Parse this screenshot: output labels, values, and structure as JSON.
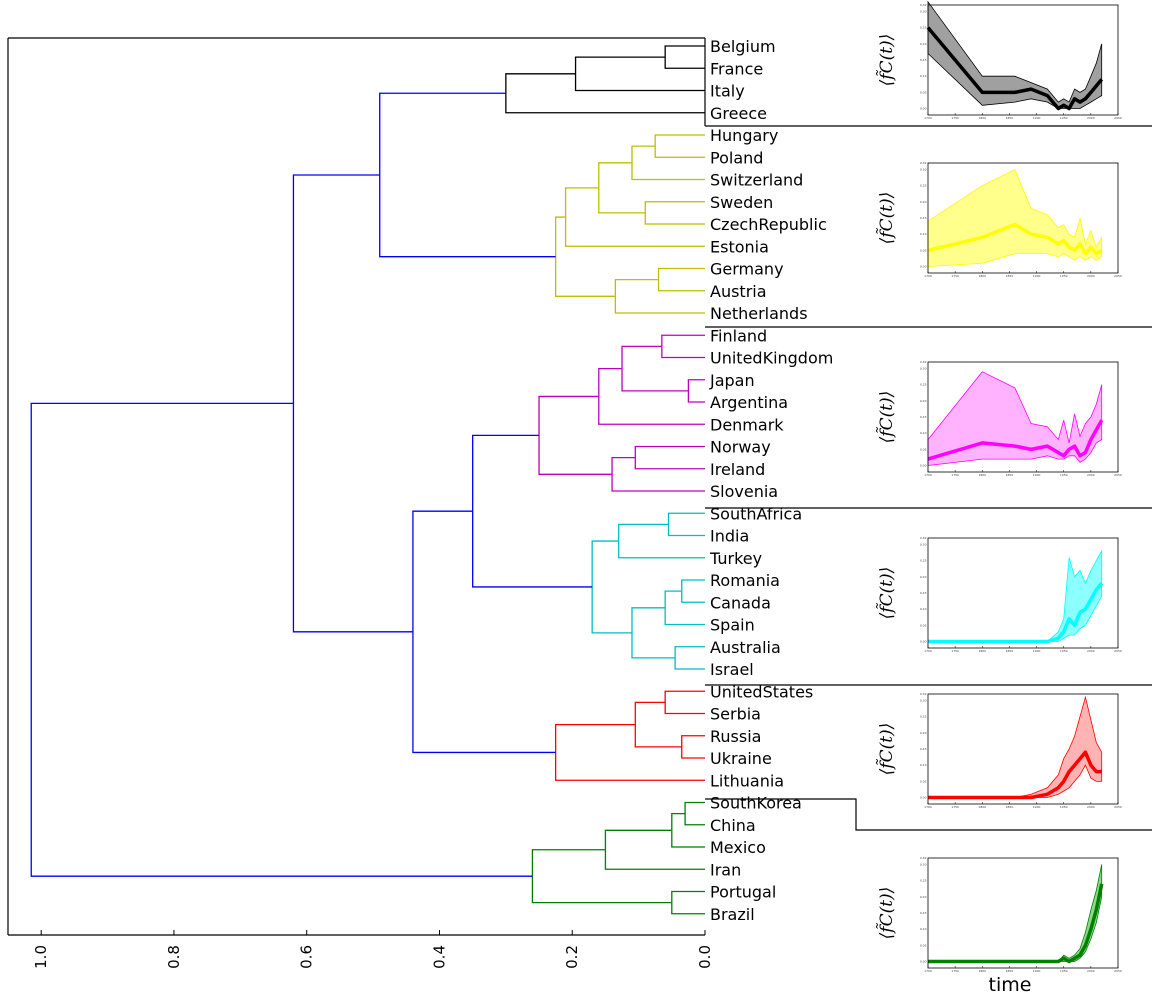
{
  "chart_data": [
    {
      "type": "dendrogram",
      "orientation": "left",
      "xlim": [
        1.05,
        0.0
      ],
      "xticks": [
        "1.0",
        "0.8",
        "0.6",
        "0.4",
        "0.2",
        "0.0"
      ],
      "xtick_values": [
        1.0,
        0.8,
        0.6,
        0.4,
        0.2,
        0.0
      ],
      "leaves": [
        "Belgium",
        "France",
        "Italy",
        "Greece",
        "Hungary",
        "Poland",
        "Switzerland",
        "Sweden",
        "CzechRepublic",
        "Estonia",
        "Germany",
        "Austria",
        "Netherlands",
        "Finland",
        "UnitedKingdom",
        "Japan",
        "Argentina",
        "Denmark",
        "Norway",
        "Ireland",
        "Slovenia",
        "SouthAfrica",
        "India",
        "Turkey",
        "Romania",
        "Canada",
        "Spain",
        "Australia",
        "Israel",
        "UnitedStates",
        "Serbia",
        "Russia",
        "Ukraine",
        "Lithuania",
        "SouthKorea",
        "China",
        "Mexico",
        "Iran",
        "Portugal",
        "Brazil"
      ],
      "links": [
        {
          "a": "Belgium",
          "b": "France",
          "height": 0.06,
          "color": "#000000"
        },
        {
          "a": "Belgium+France",
          "b": "Italy",
          "height": 0.195,
          "color": "#000000"
        },
        {
          "a": "Belgium+France+Italy",
          "b": "Greece",
          "height": 0.3,
          "color": "#000000"
        },
        {
          "a": "Hungary",
          "b": "Poland",
          "height": 0.075,
          "color": "#bfbf00"
        },
        {
          "a": "Hungary+Poland",
          "b": "Switzerland",
          "height": 0.11,
          "color": "#bfbf00"
        },
        {
          "a": "Sweden",
          "b": "CzechRepublic",
          "height": 0.09,
          "color": "#bfbf00"
        },
        {
          "a": "Hungary..Switzerland",
          "b": "Sweden+CzechRepublic",
          "height": 0.16,
          "color": "#bfbf00"
        },
        {
          "a": "Hungary..CzechRepublic",
          "b": "Estonia",
          "height": 0.21,
          "color": "#bfbf00"
        },
        {
          "a": "Germany",
          "b": "Austria",
          "height": 0.07,
          "color": "#bfbf00"
        },
        {
          "a": "Germany+Austria",
          "b": "Netherlands",
          "height": 0.135,
          "color": "#bfbf00"
        },
        {
          "a": "Hungary..Estonia",
          "b": "Germany..Netherlands",
          "height": 0.225,
          "color": "#bfbf00"
        },
        {
          "a": "Belgium..Greece",
          "b": "Hungary..Netherlands",
          "height": 0.49,
          "color": "#0000ff"
        },
        {
          "a": "Finland",
          "b": "UnitedKingdom",
          "height": 0.065,
          "color": "#bf00bf"
        },
        {
          "a": "Japan",
          "b": "Argentina",
          "height": 0.025,
          "color": "#bf00bf"
        },
        {
          "a": "Finland+UnitedKingdom",
          "b": "Japan+Argentina",
          "height": 0.125,
          "color": "#bf00bf"
        },
        {
          "a": "Finland..Argentina",
          "b": "Denmark",
          "height": 0.16,
          "color": "#bf00bf"
        },
        {
          "a": "Norway",
          "b": "Ireland",
          "height": 0.105,
          "color": "#bf00bf"
        },
        {
          "a": "Norway+Ireland",
          "b": "Slovenia",
          "height": 0.14,
          "color": "#bf00bf"
        },
        {
          "a": "Finland..Denmark",
          "b": "Norway..Slovenia",
          "height": 0.25,
          "color": "#bf00bf"
        },
        {
          "a": "SouthAfrica",
          "b": "India",
          "height": 0.055,
          "color": "#00bfbf"
        },
        {
          "a": "SouthAfrica+India",
          "b": "Turkey",
          "height": 0.13,
          "color": "#00bfbf"
        },
        {
          "a": "Romania",
          "b": "Canada",
          "height": 0.035,
          "color": "#00bfbf"
        },
        {
          "a": "Romania+Canada",
          "b": "Spain",
          "height": 0.06,
          "color": "#00bfbf"
        },
        {
          "a": "Australia",
          "b": "Israel",
          "height": 0.045,
          "color": "#00bfbf"
        },
        {
          "a": "Romania..Spain",
          "b": "Australia+Israel",
          "height": 0.11,
          "color": "#00bfbf"
        },
        {
          "a": "SouthAfrica..Turkey",
          "b": "Romania..Israel",
          "height": 0.17,
          "color": "#00bfbf"
        },
        {
          "a": "Finland..Slovenia",
          "b": "SouthAfrica..Israel",
          "height": 0.35,
          "color": "#0000ff"
        },
        {
          "a": "UnitedStates",
          "b": "Serbia",
          "height": 0.06,
          "color": "#ff0000"
        },
        {
          "a": "Russia",
          "b": "Ukraine",
          "height": 0.035,
          "color": "#ff0000"
        },
        {
          "a": "UnitedStates+Serbia",
          "b": "Russia+Ukraine",
          "height": 0.105,
          "color": "#ff0000"
        },
        {
          "a": "UnitedStates..Ukraine",
          "b": "Lithuania",
          "height": 0.225,
          "color": "#ff0000"
        },
        {
          "a": "Finland..Israel",
          "b": "UnitedStates..Lithuania",
          "height": 0.44,
          "color": "#0000ff"
        },
        {
          "a": "Belgium..Netherlands",
          "b": "Finland..Lithuania",
          "height": 0.62,
          "color": "#0000ff"
        },
        {
          "a": "SouthKorea",
          "b": "China",
          "height": 0.03,
          "color": "#008000"
        },
        {
          "a": "SouthKorea+China",
          "b": "Mexico",
          "height": 0.05,
          "color": "#008000"
        },
        {
          "a": "SouthKorea..Mexico",
          "b": "Iran",
          "height": 0.15,
          "color": "#008000"
        },
        {
          "a": "Portugal",
          "b": "Brazil",
          "height": 0.05,
          "color": "#008000"
        },
        {
          "a": "SouthKorea..Iran",
          "b": "Portugal+Brazil",
          "height": 0.26,
          "color": "#008000"
        },
        {
          "a": "Belgium..Lithuania",
          "b": "SouthKorea..Brazil",
          "height": 1.015,
          "color": "#0000ff"
        }
      ]
    },
    {
      "type": "area-line-panels",
      "ylabel": "⟨f̃C(t)⟩",
      "xlabel": "time",
      "x": [
        1700,
        1800,
        1860,
        1890,
        1920,
        1940,
        1950,
        1960,
        1970,
        1980,
        1990,
        2000,
        2010,
        2020
      ],
      "xticks": [
        "1700",
        "1750",
        "1800",
        "1850",
        "1900",
        "1950",
        "2000",
        "2050"
      ],
      "xtick_values": [
        1700,
        1750,
        1800,
        1850,
        1900,
        1950,
        2000,
        2050
      ],
      "panels": [
        {
          "color": "#000000",
          "fill": "#808080",
          "ylim": [
            -0.02,
            0.32
          ],
          "yticks": [
            "0.00",
            "0.05",
            "0.10",
            "0.15",
            "0.20",
            "0.25",
            "0.30",
            "0.32"
          ],
          "mean": [
            0.25,
            0.05,
            0.05,
            0.06,
            0.04,
            0.0,
            0.01,
            0.0,
            0.03,
            0.02,
            0.03,
            0.05,
            0.07,
            0.09
          ],
          "upper": [
            0.33,
            0.1,
            0.1,
            0.08,
            0.06,
            0.02,
            0.03,
            0.02,
            0.06,
            0.05,
            0.06,
            0.1,
            0.14,
            0.2
          ],
          "lower": [
            0.17,
            0.01,
            0.02,
            0.03,
            0.02,
            0.0,
            0.0,
            0.0,
            0.0,
            0.0,
            0.01,
            0.02,
            0.03,
            0.04
          ]
        },
        {
          "color": "#ffff00",
          "fill": "#ffff66",
          "ylim": [
            -0.02,
            0.32
          ],
          "yticks": [
            "0.00",
            "0.05",
            "0.10",
            "0.15",
            "0.20",
            "0.25",
            "0.30",
            "0.32"
          ],
          "mean": [
            0.05,
            0.09,
            0.13,
            0.1,
            0.09,
            0.07,
            0.08,
            0.06,
            0.05,
            0.07,
            0.04,
            0.06,
            0.04,
            0.05
          ],
          "upper": [
            0.14,
            0.25,
            0.3,
            0.18,
            0.16,
            0.12,
            0.13,
            0.1,
            0.09,
            0.15,
            0.07,
            0.11,
            0.06,
            0.09
          ],
          "lower": [
            0.0,
            0.01,
            0.04,
            0.04,
            0.04,
            0.03,
            0.04,
            0.03,
            0.02,
            0.03,
            0.02,
            0.03,
            0.02,
            0.03
          ]
        },
        {
          "color": "#ff00ff",
          "fill": "#ff99ff",
          "ylim": [
            -0.02,
            0.32
          ],
          "yticks": [
            "0.00",
            "0.05",
            "0.10",
            "0.15",
            "0.20",
            "0.25",
            "0.30",
            "0.32"
          ],
          "mean": [
            0.02,
            0.07,
            0.06,
            0.05,
            0.06,
            0.04,
            0.03,
            0.05,
            0.06,
            0.03,
            0.04,
            0.08,
            0.11,
            0.14
          ],
          "upper": [
            0.08,
            0.29,
            0.24,
            0.13,
            0.12,
            0.08,
            0.14,
            0.07,
            0.16,
            0.09,
            0.13,
            0.15,
            0.19,
            0.25
          ],
          "lower": [
            0.0,
            0.02,
            0.02,
            0.02,
            0.03,
            0.02,
            0.02,
            0.03,
            0.03,
            0.01,
            0.02,
            0.04,
            0.07,
            0.08
          ]
        },
        {
          "color": "#00ffff",
          "fill": "#66ffff",
          "ylim": [
            -0.02,
            0.32
          ],
          "yticks": [
            "0.00",
            "0.05",
            "0.10",
            "0.15",
            "0.20",
            "0.25",
            "0.30",
            "0.32"
          ],
          "mean": [
            0.0,
            0.0,
            0.0,
            0.0,
            0.0,
            0.01,
            0.03,
            0.07,
            0.05,
            0.09,
            0.1,
            0.13,
            0.16,
            0.18
          ],
          "upper": [
            0.0,
            0.0,
            0.0,
            0.0,
            0.0,
            0.03,
            0.07,
            0.26,
            0.2,
            0.22,
            0.18,
            0.22,
            0.25,
            0.28
          ],
          "lower": [
            0.0,
            0.0,
            0.0,
            0.0,
            0.0,
            0.0,
            0.01,
            0.02,
            0.02,
            0.04,
            0.05,
            0.08,
            0.11,
            0.14
          ]
        },
        {
          "color": "#ff0000",
          "fill": "#ff9999",
          "ylim": [
            -0.02,
            0.32
          ],
          "yticks": [
            "0.00",
            "0.05",
            "0.10",
            "0.15",
            "0.20",
            "0.25",
            "0.30",
            "0.32"
          ],
          "mean": [
            0.0,
            0.0,
            0.0,
            0.0,
            0.01,
            0.03,
            0.05,
            0.08,
            0.1,
            0.12,
            0.14,
            0.1,
            0.08,
            0.08
          ],
          "upper": [
            0.0,
            0.0,
            0.0,
            0.01,
            0.03,
            0.07,
            0.12,
            0.15,
            0.19,
            0.25,
            0.31,
            0.24,
            0.17,
            0.14
          ],
          "lower": [
            0.0,
            0.0,
            0.0,
            0.0,
            0.0,
            0.01,
            0.02,
            0.03,
            0.05,
            0.07,
            0.1,
            0.06,
            0.05,
            0.05
          ]
        },
        {
          "color": "#008000",
          "fill": "#66cc66",
          "ylim": [
            -0.02,
            0.32
          ],
          "yticks": [
            "0.00",
            "0.05",
            "0.10",
            "0.15",
            "0.20",
            "0.25",
            "0.30",
            "0.32"
          ],
          "mean": [
            0.0,
            0.0,
            0.0,
            0.0,
            0.0,
            0.0,
            0.01,
            0.0,
            0.01,
            0.02,
            0.05,
            0.1,
            0.16,
            0.24
          ],
          "upper": [
            0.0,
            0.0,
            0.0,
            0.0,
            0.0,
            0.0,
            0.02,
            0.01,
            0.02,
            0.04,
            0.09,
            0.16,
            0.22,
            0.3
          ],
          "lower": [
            0.0,
            0.0,
            0.0,
            0.0,
            0.0,
            0.0,
            0.0,
            0.0,
            0.0,
            0.01,
            0.03,
            0.07,
            0.12,
            0.2
          ]
        }
      ]
    }
  ]
}
